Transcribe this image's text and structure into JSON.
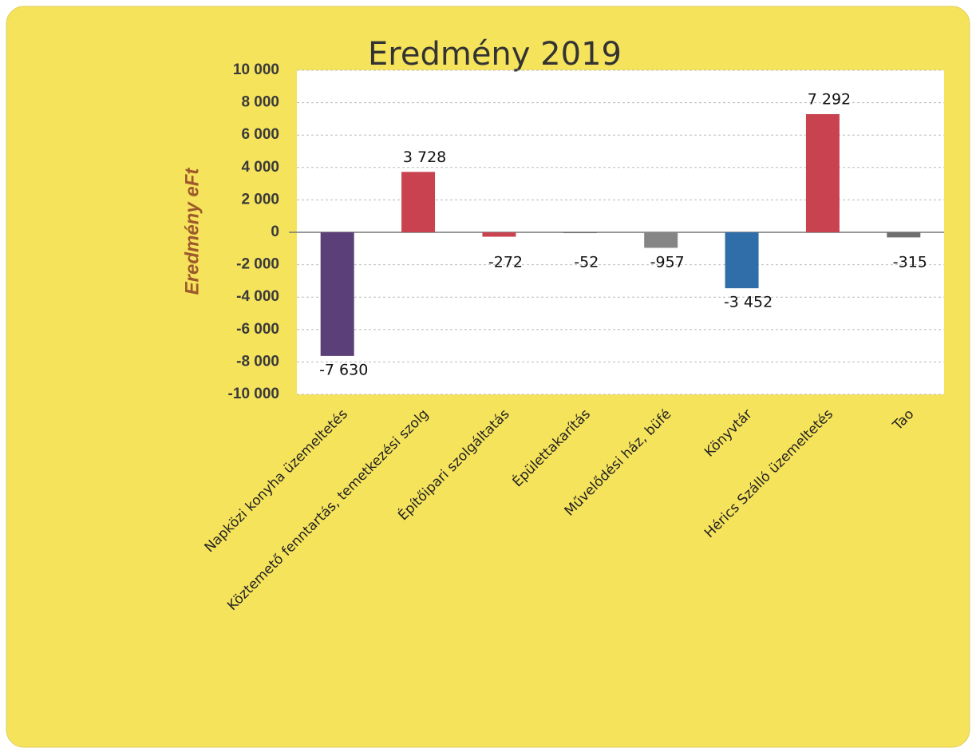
{
  "chart_data": {
    "type": "bar",
    "title": "Eredmény 2019",
    "y_label": "Eredmény eFt",
    "categories": [
      "Napközi konyha üzemeltetés",
      "Köztemető fenntartás, temetkezési szolg",
      "Építőipari szolgáltatás",
      "Épülettakarítás",
      "Művelődési ház, büfé",
      "Könyvtár",
      "Hérics Szálló üzemeltetés",
      "Tao"
    ],
    "values": [
      -7630,
      3728,
      -272,
      -52,
      -957,
      -3452,
      7292,
      -315
    ],
    "value_labels": [
      "-7 630",
      "3 728",
      "-272",
      "-52",
      "-957",
      "-3 452",
      "7 292",
      "-315"
    ],
    "colors": [
      "#5a3f78",
      "#c8434f",
      "#c8434f",
      "#6e6e6e",
      "#858585",
      "#2f6ea8",
      "#c8434f",
      "#6e6e6e"
    ],
    "ylim": [
      -10000,
      10000
    ],
    "yticks": [
      {
        "value": -10000,
        "label": "-10 000"
      },
      {
        "value": -8000,
        "label": "-8 000"
      },
      {
        "value": -6000,
        "label": "-6 000"
      },
      {
        "value": -4000,
        "label": "-4 000"
      },
      {
        "value": -2000,
        "label": "-2 000"
      },
      0,
      {
        "value": 2000,
        "label": "2 000"
      },
      {
        "value": 4000,
        "label": "4 000"
      },
      {
        "value": 6000,
        "label": "6 000"
      },
      {
        "value": 8000,
        "label": "8 000"
      },
      {
        "value": 10000,
        "label": "10 000"
      }
    ],
    "grid": true
  }
}
